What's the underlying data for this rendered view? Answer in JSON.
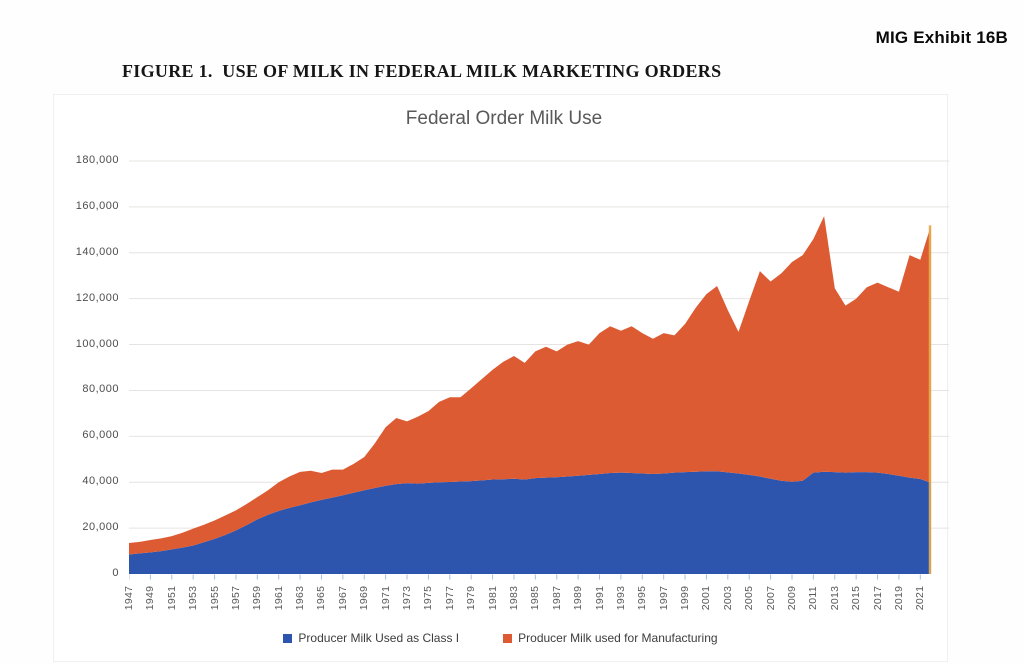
{
  "exhibit_label": "MIG Exhibit 16B",
  "figure_title": "FIGURE 1.  USE OF MILK IN FEDERAL MILK MARKETING ORDERS",
  "chart_data": {
    "type": "area",
    "stacked": true,
    "title": "Federal Order Milk Use",
    "xlabel": "",
    "ylabel": "",
    "ylim": [
      0,
      180000
    ],
    "ytick_step": 20000,
    "grid": true,
    "legend_position": "bottom",
    "ytick_labels": [
      "0",
      "20,000",
      "40,000",
      "60,000",
      "80,000",
      "100,000",
      "120,000",
      "140,000",
      "160,000",
      "180,000"
    ],
    "xtick_labels": [
      "1947",
      "1949",
      "1951",
      "1953",
      "1955",
      "1957",
      "1959",
      "1961",
      "1963",
      "1965",
      "1967",
      "1969",
      "1971",
      "1973",
      "1975",
      "1977",
      "1979",
      "1981",
      "1983",
      "1985",
      "1987",
      "1989",
      "1991",
      "1993",
      "1995",
      "1997",
      "1999",
      "2001",
      "2003",
      "2005",
      "2007",
      "2009",
      "2011",
      "2013",
      "2015",
      "2017",
      "2019",
      "2021"
    ],
    "years": [
      1947,
      1948,
      1949,
      1950,
      1951,
      1952,
      1953,
      1954,
      1955,
      1956,
      1957,
      1958,
      1959,
      1960,
      1961,
      1962,
      1963,
      1964,
      1965,
      1966,
      1967,
      1968,
      1969,
      1970,
      1971,
      1972,
      1973,
      1974,
      1975,
      1976,
      1977,
      1978,
      1979,
      1980,
      1981,
      1982,
      1983,
      1984,
      1985,
      1986,
      1987,
      1988,
      1989,
      1990,
      1991,
      1992,
      1993,
      1994,
      1995,
      1996,
      1997,
      1998,
      1999,
      2000,
      2001,
      2002,
      2003,
      2004,
      2005,
      2006,
      2007,
      2008,
      2009,
      2010,
      2011,
      2012,
      2013,
      2014,
      2015,
      2016,
      2017,
      2018,
      2019,
      2020,
      2021,
      2022
    ],
    "series": [
      {
        "name": "Producer Milk Used as Class I",
        "color": "#2e55ae",
        "values": [
          8500,
          9000,
          9400,
          10000,
          10700,
          11500,
          12400,
          13800,
          15300,
          17000,
          19000,
          21300,
          23800,
          25800,
          27500,
          28800,
          30000,
          31200,
          32300,
          33300,
          34300,
          35400,
          36500,
          37500,
          38500,
          39200,
          39600,
          39400,
          39700,
          40000,
          40100,
          40300,
          40500,
          40800,
          41200,
          41300,
          41500,
          41200,
          41800,
          42000,
          42200,
          42500,
          42800,
          43200,
          43600,
          44000,
          44200,
          44000,
          43800,
          43600,
          43800,
          44200,
          44400,
          44600,
          44800,
          44800,
          44300,
          43800,
          43200,
          42500,
          41500,
          40600,
          40200,
          40600,
          44200,
          44600,
          44400,
          44200,
          44400,
          44400,
          44200,
          43600,
          42800,
          42000,
          41400,
          39800
        ]
      },
      {
        "name": "Producer Milk used for Manufacturing",
        "color": "#dd5b33",
        "values": [
          5000,
          5000,
          5400,
          5500,
          5800,
          6500,
          7400,
          7700,
          8000,
          8500,
          8700,
          9200,
          9700,
          10700,
          12500,
          13700,
          14500,
          13800,
          11700,
          12200,
          11200,
          12600,
          14500,
          19500,
          25500,
          28800,
          26900,
          29100,
          31300,
          35000,
          36900,
          36700,
          40500,
          44200,
          47800,
          51200,
          53500,
          50800,
          55200,
          57000,
          54800,
          57500,
          58700,
          56800,
          61400,
          64000,
          61800,
          64000,
          61200,
          58900,
          61200,
          59800,
          64600,
          71400,
          77200,
          80700,
          70700,
          61700,
          75800,
          89500,
          86000,
          90400,
          95800,
          98400,
          101800,
          111400,
          80100,
          72800,
          75600,
          80600,
          82800,
          81400,
          80200,
          97000,
          95600,
          112200
        ]
      }
    ],
    "gridline_color": "#e5e4e2",
    "tick_color": "#a9bfdc",
    "edge_highlight_color": "#e6ae4f"
  }
}
